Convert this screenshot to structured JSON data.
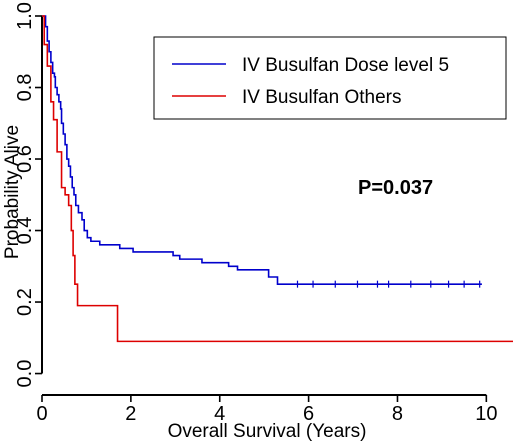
{
  "chart_data": {
    "type": "line",
    "subtype": "kaplan-meier step",
    "xlabel": "Overall Survival (Years)",
    "ylabel": "Probability Alive",
    "xlim": [
      0,
      10.6
    ],
    "ylim": [
      -0.06,
      1.0
    ],
    "xticks": [
      0,
      2,
      4,
      6,
      8,
      10
    ],
    "yticks": [
      0.0,
      0.2,
      0.4,
      0.6,
      0.8,
      1.0
    ],
    "xtick_labels": [
      "0",
      "2",
      "4",
      "6",
      "8",
      "10"
    ],
    "ytick_labels": [
      "0.0",
      "0.2",
      "0.4",
      "0.6",
      "0.8",
      "1.0"
    ],
    "grid": false,
    "legend_position": "top-right",
    "annotation": "P=0.037",
    "series": [
      {
        "name": "IV Busulfan Dose level 5",
        "color": "#0000cc",
        "x": [
          0,
          0.08,
          0.12,
          0.16,
          0.2,
          0.24,
          0.28,
          0.3,
          0.34,
          0.38,
          0.42,
          0.44,
          0.48,
          0.52,
          0.56,
          0.6,
          0.64,
          0.68,
          0.72,
          0.76,
          0.82,
          0.9,
          0.95,
          1.02,
          1.1,
          1.3,
          1.75,
          2.05,
          2.4,
          2.95,
          3.1,
          3.6,
          4.2,
          4.4,
          5.1,
          5.3,
          9.9
        ],
        "y": [
          1.0,
          0.97,
          0.93,
          0.9,
          0.87,
          0.84,
          0.83,
          0.8,
          0.78,
          0.76,
          0.74,
          0.7,
          0.67,
          0.64,
          0.6,
          0.58,
          0.55,
          0.52,
          0.5,
          0.47,
          0.45,
          0.43,
          0.4,
          0.38,
          0.37,
          0.36,
          0.35,
          0.34,
          0.34,
          0.33,
          0.32,
          0.31,
          0.3,
          0.29,
          0.27,
          0.25,
          0.25
        ],
        "censor_x": [
          5.75,
          6.1,
          6.6,
          7.1,
          7.55,
          7.8,
          8.3,
          8.75,
          9.15,
          9.5,
          9.85
        ]
      },
      {
        "name": "IV Busulfan Others",
        "color": "#dd0000",
        "x": [
          0,
          0.05,
          0.12,
          0.2,
          0.26,
          0.34,
          0.44,
          0.52,
          0.6,
          0.66,
          0.7,
          0.74,
          0.8,
          1.7,
          10.6
        ],
        "y": [
          1.0,
          0.92,
          0.86,
          0.76,
          0.71,
          0.62,
          0.52,
          0.5,
          0.47,
          0.4,
          0.33,
          0.25,
          0.19,
          0.09,
          0.09
        ],
        "censor_x": []
      }
    ]
  }
}
